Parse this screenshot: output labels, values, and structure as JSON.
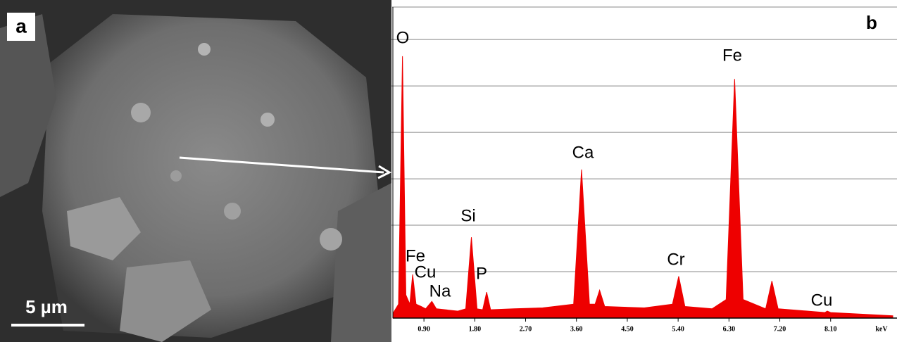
{
  "panel_a": {
    "label": "a",
    "scale_bar": "5 µm"
  },
  "chart_data": {
    "type": "area",
    "panel_label": "b",
    "x_label": "keV",
    "color": "#ee0000",
    "x": [
      0.35,
      0.45,
      0.52,
      0.58,
      0.65,
      0.7,
      0.76,
      0.85,
      0.93,
      1.04,
      1.12,
      1.5,
      1.64,
      1.74,
      1.84,
      1.94,
      2.01,
      2.08,
      2.5,
      3.0,
      3.55,
      3.69,
      3.83,
      3.93,
      4.01,
      4.1,
      4.8,
      5.3,
      5.41,
      5.52,
      6.0,
      6.25,
      6.4,
      6.55,
      6.95,
      7.06,
      7.17,
      8.0,
      8.04,
      8.1,
      9.2
    ],
    "values": [
      0.1,
      0.3,
      5.64,
      0.5,
      0.3,
      0.94,
      0.3,
      0.25,
      0.2,
      0.36,
      0.2,
      0.15,
      0.2,
      1.74,
      0.2,
      0.18,
      0.56,
      0.18,
      0.2,
      0.22,
      0.3,
      3.2,
      0.3,
      0.3,
      0.6,
      0.25,
      0.22,
      0.3,
      0.9,
      0.25,
      0.2,
      0.4,
      5.15,
      0.4,
      0.2,
      0.8,
      0.2,
      0.12,
      0.15,
      0.12,
      0.05
    ],
    "annotations": [
      "O",
      "Fe",
      "Ca",
      "Si",
      "Fe",
      "Cu",
      "P",
      "Na",
      "Cr",
      "Cu"
    ],
    "xlim": [
      0.35,
      9.2
    ],
    "ylim": [
      0,
      6.7
    ],
    "xticks": [
      {
        "value": 0.9,
        "label": "0.90"
      },
      {
        "value": 1.8,
        "label": "1.80"
      },
      {
        "value": 2.7,
        "label": "2.70"
      },
      {
        "value": 3.6,
        "label": "3.60"
      },
      {
        "value": 4.5,
        "label": "4.50"
      },
      {
        "value": 5.4,
        "label": "5.40"
      },
      {
        "value": 6.3,
        "label": "6.30"
      },
      {
        "value": 7.2,
        "label": "7.20"
      },
      {
        "value": 8.1,
        "label": "8.10"
      }
    ],
    "yticks": [
      1,
      2,
      3,
      4,
      5,
      6
    ],
    "grid": true
  }
}
